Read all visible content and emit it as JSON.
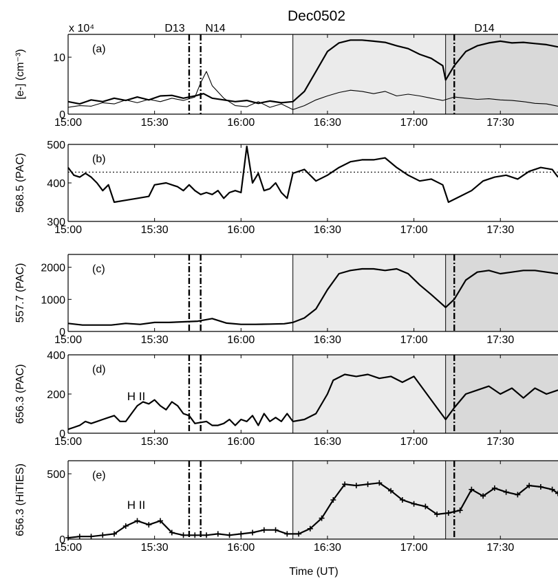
{
  "title": "Dec0502",
  "xlabel": "Time (UT)",
  "x_ticks": [
    "15:00",
    "15:30",
    "16:00",
    "16:30",
    "17:00",
    "17:30"
  ],
  "markers": [
    {
      "label": "D13",
      "time": "15:42"
    },
    {
      "label": "N14",
      "time": "15:46"
    },
    {
      "label": "D14",
      "time": "17:14"
    }
  ],
  "shading": [
    {
      "from": "16:18",
      "to": "17:11",
      "color": "#ebebeb"
    },
    {
      "from": "17:11",
      "to": "17:50",
      "color": "#d9d9d9"
    }
  ],
  "chart_data": [
    {
      "type": "line",
      "panel": "(a)",
      "ylabel": "[e-] (cm⁻³)",
      "scale_note": "x 10⁴",
      "yticks": [
        "0",
        "10"
      ],
      "ylim": [
        0,
        14
      ],
      "series": [
        {
          "style": "thick",
          "x": [
            "15:00",
            "15:04",
            "15:08",
            "15:12",
            "15:16",
            "15:20",
            "15:24",
            "15:28",
            "15:32",
            "15:36",
            "15:40",
            "15:44",
            "15:47",
            "15:50",
            "15:54",
            "15:58",
            "16:02",
            "16:06",
            "16:10",
            "16:14",
            "16:18",
            "16:22",
            "16:26",
            "16:30",
            "16:34",
            "16:38",
            "16:42",
            "16:46",
            "16:50",
            "16:54",
            "16:58",
            "17:02",
            "17:06",
            "17:10",
            "17:11",
            "17:14",
            "17:18",
            "17:22",
            "17:26",
            "17:30",
            "17:34",
            "17:38",
            "17:42",
            "17:46",
            "17:50"
          ],
          "y": [
            2.2,
            1.8,
            2.5,
            2.2,
            2.8,
            2.4,
            3.0,
            2.5,
            3.2,
            3.3,
            2.8,
            3.2,
            3.6,
            2.8,
            2.5,
            2.2,
            2.4,
            1.9,
            2.3,
            2.0,
            2.2,
            4.0,
            7.5,
            11.0,
            12.5,
            13.0,
            13.0,
            12.8,
            12.6,
            12.0,
            11.5,
            10.5,
            9.8,
            8.5,
            6.0,
            8.5,
            11.0,
            12.0,
            12.5,
            12.8,
            12.5,
            12.6,
            12.4,
            12.2,
            11.8
          ]
        },
        {
          "style": "thin",
          "x": [
            "15:00",
            "15:04",
            "15:08",
            "15:12",
            "15:16",
            "15:20",
            "15:24",
            "15:28",
            "15:32",
            "15:36",
            "15:40",
            "15:44",
            "15:46",
            "15:48",
            "15:50",
            "15:54",
            "15:58",
            "16:02",
            "16:06",
            "16:10",
            "16:14",
            "16:18",
            "16:22",
            "16:26",
            "16:30",
            "16:34",
            "16:38",
            "16:42",
            "16:46",
            "16:50",
            "16:54",
            "16:58",
            "17:02",
            "17:06",
            "17:10",
            "17:14",
            "17:18",
            "17:22",
            "17:26",
            "17:30",
            "17:34",
            "17:38",
            "17:42",
            "17:46",
            "17:50"
          ],
          "y": [
            1.2,
            1.5,
            1.4,
            2.0,
            1.8,
            2.5,
            2.0,
            2.6,
            2.2,
            2.8,
            2.4,
            3.0,
            5.5,
            7.5,
            5.0,
            2.8,
            1.5,
            1.3,
            2.2,
            1.2,
            1.8,
            0.8,
            1.5,
            2.5,
            3.2,
            3.8,
            4.2,
            4.0,
            3.6,
            4.0,
            3.2,
            3.5,
            3.2,
            2.8,
            2.4,
            3.0,
            2.8,
            2.6,
            2.7,
            2.5,
            2.4,
            2.2,
            1.9,
            1.8,
            1.4
          ]
        }
      ]
    },
    {
      "type": "line",
      "panel": "(b)",
      "ylabel": "568.5 (PAC)",
      "yticks": [
        "300",
        "400",
        "500"
      ],
      "ylim": [
        300,
        500
      ],
      "reference_line": 428,
      "x": [
        "15:00",
        "15:02",
        "15:04",
        "15:06",
        "15:08",
        "15:10",
        "15:12",
        "15:14",
        "15:16",
        "15:20",
        "15:24",
        "15:28",
        "15:30",
        "15:34",
        "15:38",
        "15:40",
        "15:42",
        "15:44",
        "15:46",
        "15:48",
        "15:50",
        "15:52",
        "15:54",
        "15:56",
        "15:58",
        "16:00",
        "16:02",
        "16:04",
        "16:06",
        "16:08",
        "16:10",
        "16:12",
        "16:14",
        "16:16",
        "16:18",
        "16:22",
        "16:26",
        "16:30",
        "16:34",
        "16:38",
        "16:42",
        "16:46",
        "16:50",
        "16:54",
        "16:58",
        "17:02",
        "17:06",
        "17:10",
        "17:12",
        "17:16",
        "17:20",
        "17:24",
        "17:28",
        "17:32",
        "17:36",
        "17:40",
        "17:44",
        "17:48",
        "17:50"
      ],
      "y": [
        440,
        420,
        415,
        425,
        415,
        400,
        380,
        395,
        350,
        355,
        360,
        365,
        395,
        400,
        390,
        380,
        395,
        380,
        370,
        375,
        370,
        380,
        360,
        375,
        380,
        375,
        495,
        400,
        425,
        380,
        385,
        400,
        375,
        360,
        425,
        435,
        405,
        420,
        440,
        455,
        460,
        460,
        465,
        440,
        420,
        405,
        410,
        395,
        350,
        365,
        380,
        405,
        415,
        420,
        410,
        430,
        440,
        435,
        415
      ]
    },
    {
      "type": "line",
      "panel": "(c)",
      "ylabel": "557.7 (PAC)",
      "yticks": [
        "0",
        "1000",
        "2000"
      ],
      "ylim": [
        0,
        2400
      ],
      "x": [
        "15:00",
        "15:05",
        "15:10",
        "15:15",
        "15:20",
        "15:25",
        "15:30",
        "15:35",
        "15:40",
        "15:45",
        "15:50",
        "15:55",
        "16:00",
        "16:05",
        "16:10",
        "16:15",
        "16:18",
        "16:22",
        "16:26",
        "16:30",
        "16:34",
        "16:38",
        "16:42",
        "16:46",
        "16:50",
        "16:54",
        "16:58",
        "17:02",
        "17:06",
        "17:11",
        "17:14",
        "17:18",
        "17:22",
        "17:26",
        "17:30",
        "17:34",
        "17:38",
        "17:42",
        "17:46",
        "17:50"
      ],
      "y": [
        250,
        200,
        200,
        200,
        250,
        220,
        280,
        280,
        300,
        320,
        400,
        260,
        220,
        220,
        230,
        240,
        280,
        420,
        700,
        1300,
        1800,
        1900,
        1950,
        1950,
        1900,
        1950,
        1800,
        1450,
        1150,
        750,
        1000,
        1600,
        1850,
        1900,
        1800,
        1850,
        1900,
        1900,
        1850,
        1800
      ]
    },
    {
      "type": "line",
      "panel": "(d)",
      "ylabel": "656.3 (PAC)",
      "yticks": [
        "0",
        "200",
        "400"
      ],
      "ylim": [
        0,
        400
      ],
      "annotation": "H II",
      "x": [
        "15:00",
        "15:02",
        "15:04",
        "15:06",
        "15:08",
        "15:10",
        "15:12",
        "15:14",
        "15:16",
        "15:18",
        "15:20",
        "15:22",
        "15:24",
        "15:26",
        "15:28",
        "15:30",
        "15:32",
        "15:34",
        "15:36",
        "15:38",
        "15:40",
        "15:42",
        "15:44",
        "15:46",
        "15:48",
        "15:50",
        "15:52",
        "15:54",
        "15:56",
        "15:58",
        "16:00",
        "16:02",
        "16:04",
        "16:06",
        "16:08",
        "16:10",
        "16:12",
        "16:14",
        "16:16",
        "16:18",
        "16:22",
        "16:26",
        "16:30",
        "16:32",
        "16:36",
        "16:40",
        "16:44",
        "16:48",
        "16:52",
        "16:56",
        "17:00",
        "17:04",
        "17:08",
        "17:11",
        "17:14",
        "17:18",
        "17:22",
        "17:26",
        "17:30",
        "17:34",
        "17:38",
        "17:42",
        "17:46",
        "17:50"
      ],
      "y": [
        20,
        30,
        40,
        60,
        50,
        60,
        70,
        80,
        90,
        60,
        60,
        100,
        140,
        160,
        150,
        170,
        140,
        120,
        160,
        140,
        100,
        90,
        50,
        55,
        60,
        40,
        40,
        50,
        70,
        40,
        70,
        60,
        90,
        40,
        100,
        60,
        80,
        60,
        100,
        60,
        70,
        100,
        200,
        270,
        300,
        290,
        300,
        280,
        290,
        260,
        290,
        210,
        130,
        70,
        130,
        200,
        220,
        240,
        200,
        230,
        180,
        230,
        200,
        220
      ]
    },
    {
      "type": "line",
      "panel": "(e)",
      "ylabel": "656.3 (HiTIES)",
      "yticks": [
        "0",
        "500"
      ],
      "ylim": [
        0,
        600
      ],
      "annotation": "H II",
      "markers_on_points": true,
      "x": [
        "15:00",
        "15:04",
        "15:08",
        "15:12",
        "15:16",
        "15:20",
        "15:24",
        "15:28",
        "15:32",
        "15:36",
        "15:40",
        "15:44",
        "15:48",
        "15:52",
        "15:56",
        "16:00",
        "16:04",
        "16:08",
        "16:12",
        "16:16",
        "16:20",
        "16:24",
        "16:28",
        "16:32",
        "16:36",
        "16:40",
        "16:44",
        "16:48",
        "16:52",
        "16:56",
        "17:00",
        "17:04",
        "17:08",
        "17:12",
        "17:16",
        "17:20",
        "17:24",
        "17:28",
        "17:32",
        "17:36",
        "17:40",
        "17:44",
        "17:48",
        "17:50"
      ],
      "y": [
        10,
        20,
        20,
        30,
        40,
        100,
        140,
        110,
        140,
        50,
        30,
        30,
        30,
        40,
        30,
        40,
        50,
        70,
        70,
        40,
        40,
        80,
        160,
        300,
        420,
        410,
        420,
        430,
        370,
        300,
        270,
        250,
        190,
        200,
        220,
        380,
        330,
        390,
        360,
        340,
        410,
        400,
        380,
        350
      ]
    }
  ]
}
